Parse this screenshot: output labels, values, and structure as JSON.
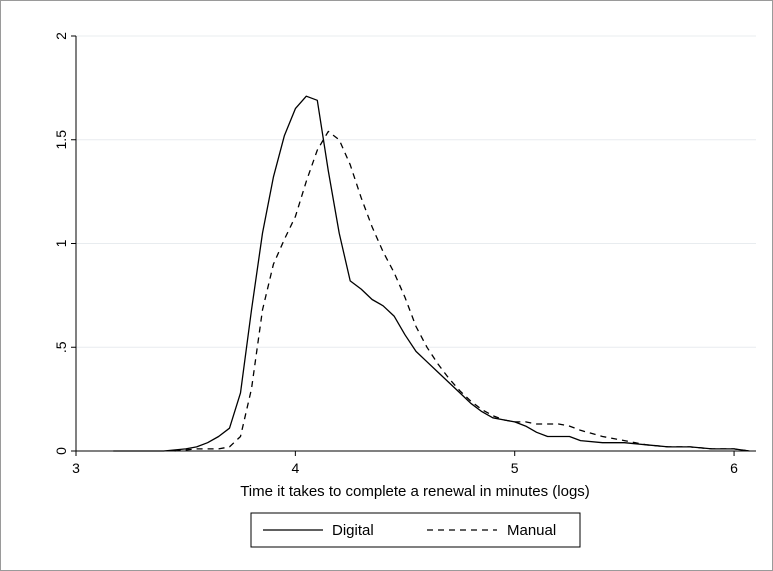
{
  "chart_data": {
    "type": "line",
    "title": "",
    "xlabel": "Time it takes to complete a renewal in minutes (logs)",
    "ylabel": "",
    "xlim": [
      3,
      6.1
    ],
    "ylim": [
      0,
      2
    ],
    "x_ticks": [
      3,
      4,
      5,
      6
    ],
    "x_tick_labels": [
      "3",
      "4",
      "5",
      "6"
    ],
    "y_ticks": [
      0,
      0.5,
      1,
      1.5,
      2
    ],
    "y_tick_labels": [
      "0",
      ".5",
      "1",
      "1.5",
      "2"
    ],
    "grid": "horizontal",
    "legend_position": "bottom",
    "series": [
      {
        "name": "Digital",
        "line_style": "solid",
        "color": "#000000",
        "x": [
          3.17,
          3.3,
          3.4,
          3.5,
          3.55,
          3.6,
          3.65,
          3.7,
          3.75,
          3.8,
          3.85,
          3.9,
          3.95,
          4.0,
          4.05,
          4.1,
          4.15,
          4.2,
          4.25,
          4.3,
          4.35,
          4.4,
          4.45,
          4.5,
          4.55,
          4.6,
          4.65,
          4.7,
          4.75,
          4.8,
          4.85,
          4.9,
          4.95,
          5.0,
          5.05,
          5.1,
          5.15,
          5.2,
          5.25,
          5.3,
          5.4,
          5.5,
          5.6,
          5.7,
          5.8,
          5.9,
          6.0,
          6.07
        ],
        "values": [
          0.0,
          0.0,
          0.0,
          0.01,
          0.02,
          0.04,
          0.07,
          0.11,
          0.28,
          0.68,
          1.05,
          1.32,
          1.52,
          1.65,
          1.71,
          1.69,
          1.35,
          1.05,
          0.82,
          0.78,
          0.73,
          0.7,
          0.65,
          0.56,
          0.48,
          0.43,
          0.38,
          0.33,
          0.28,
          0.23,
          0.19,
          0.16,
          0.15,
          0.14,
          0.12,
          0.09,
          0.07,
          0.07,
          0.07,
          0.05,
          0.04,
          0.04,
          0.03,
          0.02,
          0.02,
          0.01,
          0.01,
          0.0
        ]
      },
      {
        "name": "Manual",
        "line_style": "dashed",
        "color": "#000000",
        "x": [
          3.45,
          3.55,
          3.65,
          3.7,
          3.75,
          3.8,
          3.85,
          3.9,
          3.95,
          4.0,
          4.05,
          4.1,
          4.15,
          4.2,
          4.25,
          4.3,
          4.35,
          4.4,
          4.45,
          4.5,
          4.55,
          4.6,
          4.65,
          4.7,
          4.75,
          4.8,
          4.85,
          4.9,
          4.95,
          5.0,
          5.05,
          5.1,
          5.15,
          5.2,
          5.25,
          5.3,
          5.4,
          5.5,
          5.6,
          5.7,
          5.8,
          5.9,
          6.0,
          6.07
        ],
        "values": [
          0.0,
          0.01,
          0.01,
          0.02,
          0.07,
          0.3,
          0.68,
          0.9,
          1.02,
          1.13,
          1.3,
          1.45,
          1.54,
          1.5,
          1.38,
          1.22,
          1.08,
          0.96,
          0.86,
          0.74,
          0.6,
          0.5,
          0.42,
          0.35,
          0.29,
          0.24,
          0.2,
          0.17,
          0.15,
          0.14,
          0.14,
          0.13,
          0.13,
          0.13,
          0.12,
          0.1,
          0.07,
          0.05,
          0.03,
          0.02,
          0.02,
          0.01,
          0.01,
          0.0
        ]
      }
    ]
  }
}
